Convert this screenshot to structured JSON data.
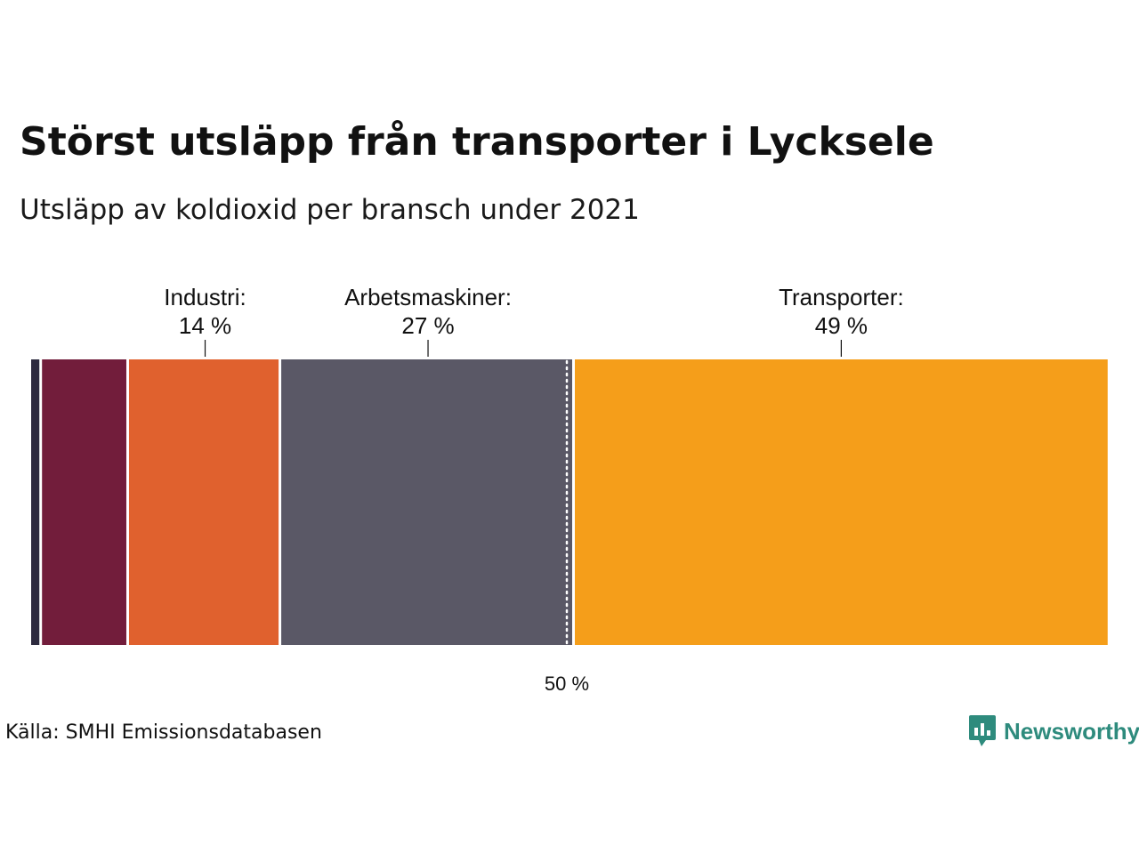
{
  "title": "Störst utsläpp från transporter i Lycksele",
  "subtitle": "Utsläpp av koldioxid per bransch under 2021",
  "source": "Källa: SMHI Emissionsdatabasen",
  "brand": "Newsworthy",
  "colors": {
    "brand": "#2e8b7d"
  },
  "chart_data": {
    "type": "bar",
    "orientation": "horizontal-stacked",
    "unit": "%",
    "xlim": [
      0,
      100
    ],
    "series": [
      {
        "name": "",
        "value": 1,
        "color": "#2d2a3e",
        "label": "",
        "value_label": ""
      },
      {
        "name": "",
        "value": 8,
        "color": "#721d3b",
        "label": "",
        "value_label": ""
      },
      {
        "name": "Industri",
        "value": 14,
        "color": "#e0612e",
        "label": "Industri:",
        "value_label": "14 %"
      },
      {
        "name": "Arbetsmaskiner",
        "value": 27,
        "color": "#5a5866",
        "label": "Arbetsmaskiner:",
        "value_label": "27 %"
      },
      {
        "name": "Transporter",
        "value": 49,
        "color": "#f59e1a",
        "label": "Transporter:",
        "value_label": "49 %"
      }
    ],
    "reference_line": {
      "value": 50,
      "label": "50 %"
    }
  }
}
